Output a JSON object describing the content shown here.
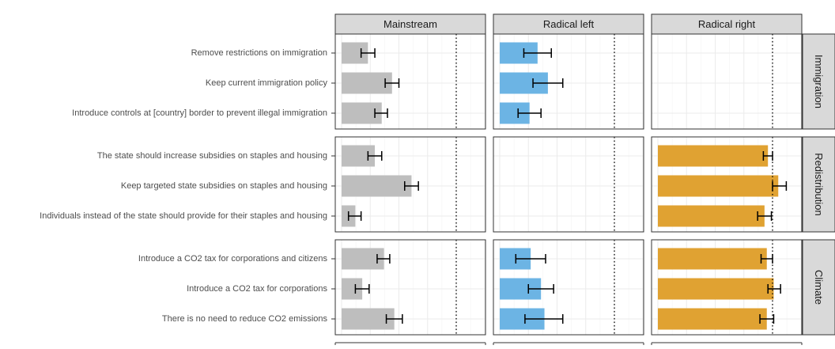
{
  "chart_data": {
    "type": "bar",
    "orientation": "horizontal",
    "facet_columns": [
      "Mainstream",
      "Radical left",
      "Radical right"
    ],
    "colors": {
      "Mainstream": "#bebebe",
      "Radical left": "#6cb4e4",
      "Radical right": "#e0a232",
      "strip": "#d9d9d9",
      "grid": "#ebebeb"
    },
    "x_axis": {
      "min": 0,
      "max": 1.2,
      "gridlines": [
        0,
        0.25,
        0.5,
        0.75,
        1.0,
        1.25
      ],
      "reference_line": 1.0,
      "reference_style": "dotted"
    },
    "grid": true,
    "groups": [
      {
        "name": "Immigration",
        "categories": [
          "Remove restrictions on immigration",
          "Keep current immigration policy",
          "Introduce controls at [country] border to prevent illegal immigration"
        ],
        "series": [
          {
            "facet": "Mainstream",
            "values": [
              0.23,
              0.44,
              0.35
            ],
            "ci_low": [
              0.17,
              0.38,
              0.29
            ],
            "ci_high": [
              0.29,
              0.5,
              0.4
            ]
          },
          {
            "facet": "Radical left",
            "values": [
              0.33,
              0.42,
              0.26
            ],
            "ci_low": [
              0.21,
              0.29,
              0.16
            ],
            "ci_high": [
              0.45,
              0.55,
              0.36
            ]
          },
          {
            "facet": "Radical right",
            "values": [
              null,
              null,
              null
            ],
            "ci_low": [
              null,
              null,
              null
            ],
            "ci_high": [
              null,
              null,
              null
            ]
          }
        ]
      },
      {
        "name": "Redistribution",
        "categories": [
          "The state should increase subsidies on staples and housing",
          "Keep targeted state subsidies on staples and housing",
          "Individuals instead of the state should provide for their staples and housing"
        ],
        "series": [
          {
            "facet": "Mainstream",
            "values": [
              0.29,
              0.61,
              0.12
            ],
            "ci_low": [
              0.23,
              0.55,
              0.06
            ],
            "ci_high": [
              0.35,
              0.67,
              0.17
            ]
          },
          {
            "facet": "Radical left",
            "values": [
              null,
              null,
              null
            ],
            "ci_low": [
              null,
              null,
              null
            ],
            "ci_high": [
              null,
              null,
              null
            ]
          },
          {
            "facet": "Radical right",
            "values": [
              0.96,
              1.05,
              0.93
            ],
            "ci_low": [
              0.92,
              1.0,
              0.87
            ],
            "ci_high": [
              1.0,
              1.12,
              0.99
            ]
          }
        ]
      },
      {
        "name": "Climate",
        "categories": [
          "Introduce a CO2 tax for corporations and citizens",
          "Introduce a CO2 tax for corporations",
          "There is no need to reduce CO2 emissions"
        ],
        "series": [
          {
            "facet": "Mainstream",
            "values": [
              0.37,
              0.18,
              0.46
            ],
            "ci_low": [
              0.31,
              0.12,
              0.39
            ],
            "ci_high": [
              0.42,
              0.24,
              0.53
            ]
          },
          {
            "facet": "Radical left",
            "values": [
              0.27,
              0.36,
              0.39
            ],
            "ci_low": [
              0.14,
              0.25,
              0.22
            ],
            "ci_high": [
              0.4,
              0.47,
              0.55
            ]
          },
          {
            "facet": "Radical right",
            "values": [
              0.95,
              1.01,
              0.95
            ],
            "ci_low": [
              0.9,
              0.96,
              0.89
            ],
            "ci_high": [
              1.0,
              1.07,
              1.01
            ]
          }
        ]
      }
    ]
  }
}
